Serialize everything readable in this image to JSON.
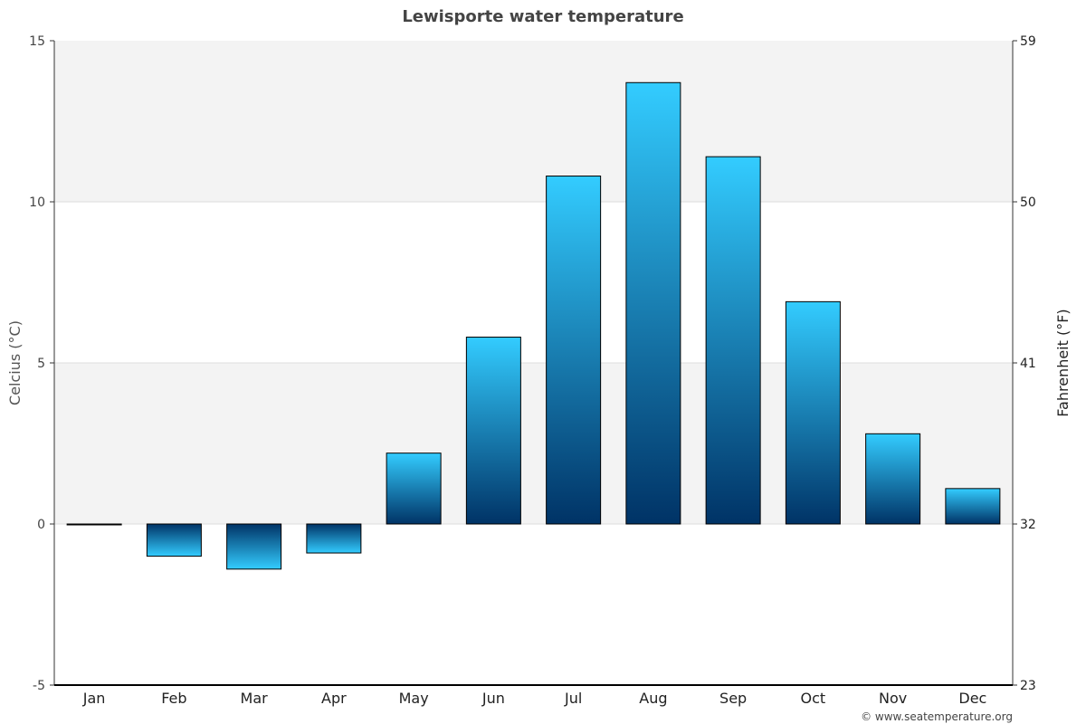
{
  "chart_data": {
    "type": "bar",
    "title": "Lewisporte water temperature",
    "categories": [
      "Jan",
      "Feb",
      "Mar",
      "Apr",
      "May",
      "Jun",
      "Jul",
      "Aug",
      "Sep",
      "Oct",
      "Nov",
      "Dec"
    ],
    "values": [
      0.0,
      -1.0,
      -1.4,
      -0.9,
      2.2,
      5.8,
      10.8,
      13.7,
      11.4,
      6.9,
      2.8,
      1.1
    ],
    "ylabel": "Celcius (°C)",
    "y2label": "Fahrenheit (°F)",
    "ylim": [
      -5,
      15
    ],
    "yticks": [
      "15",
      "10",
      "5",
      "0",
      "-5"
    ],
    "y2ticks": [
      "59",
      "50",
      "41",
      "32",
      "23"
    ],
    "grid": true,
    "colors": {
      "bar_top": "#33ccff",
      "bar_bottom": "#003366",
      "band": "#f3f3f3",
      "axis": "#333333"
    }
  },
  "credit": "© www.seatemperature.org"
}
